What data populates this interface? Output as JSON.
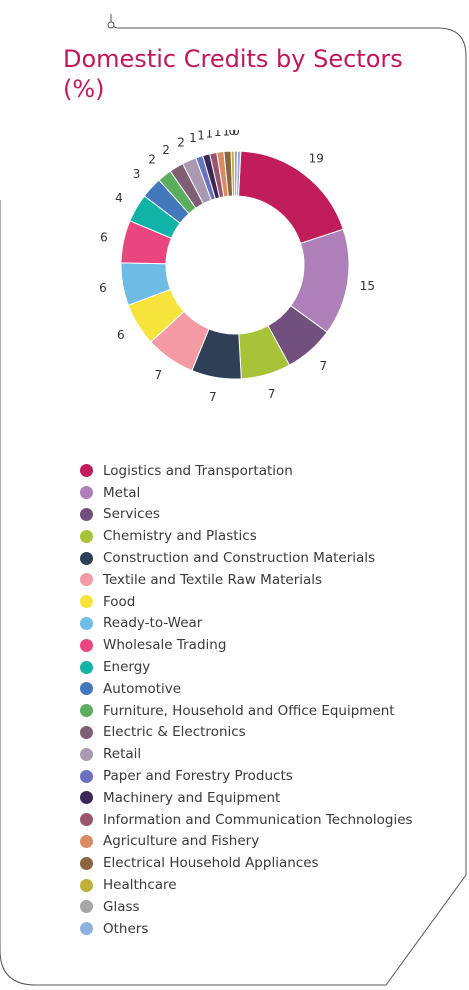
{
  "title": {
    "line1": "Domestic Credits by Sectors",
    "line2": "(%)"
  },
  "chart_data": {
    "type": "pie",
    "variant": "donut",
    "title": "Domestic Credits by Sectors (%)",
    "legend_position": "bottom",
    "categories": [
      "Logistics and Transportation",
      "Metal",
      "Services",
      "Chemistry and Plastics",
      "Construction and Construction Materials",
      "Textile and Textile Raw Materials",
      "Food",
      "Ready-to-Wear",
      "Wholesale Trading",
      "Energy",
      "Automotive",
      "Furniture, Household and Office Equipment",
      "Electric & Electronics",
      "Retail",
      "Paper and Forestry Products",
      "Machinery and Equipment",
      "Information and Communication Technologies",
      "Agriculture and Fishery",
      "Electrical Household Appliances",
      "Healthcare",
      "Glass",
      "Others"
    ],
    "values": [
      19,
      15,
      7,
      7,
      7,
      7,
      6,
      6,
      6,
      4,
      3,
      2,
      2,
      2,
      1,
      1,
      1,
      1,
      1,
      0,
      0,
      0
    ],
    "value_labels": [
      "19",
      "15",
      "7",
      "7",
      "7",
      "7",
      "6",
      "6",
      "6",
      "4",
      "3",
      "2",
      "2",
      "2",
      "1",
      "1",
      "1",
      "1",
      "1",
      "0",
      "0",
      ""
    ],
    "colors": [
      "#c21d5b",
      "#ae7fb8",
      "#71507e",
      "#a8c23a",
      "#2f3f55",
      "#f39aa4",
      "#f6e33b",
      "#6dbde6",
      "#e9457f",
      "#11b3a6",
      "#4378bd",
      "#5cae5e",
      "#7e5f74",
      "#a99ab1",
      "#6a72be",
      "#3a2858",
      "#9a5668",
      "#d98b61",
      "#8b6541",
      "#bfb03c",
      "#a6a6a6",
      "#8fb1df"
    ]
  }
}
